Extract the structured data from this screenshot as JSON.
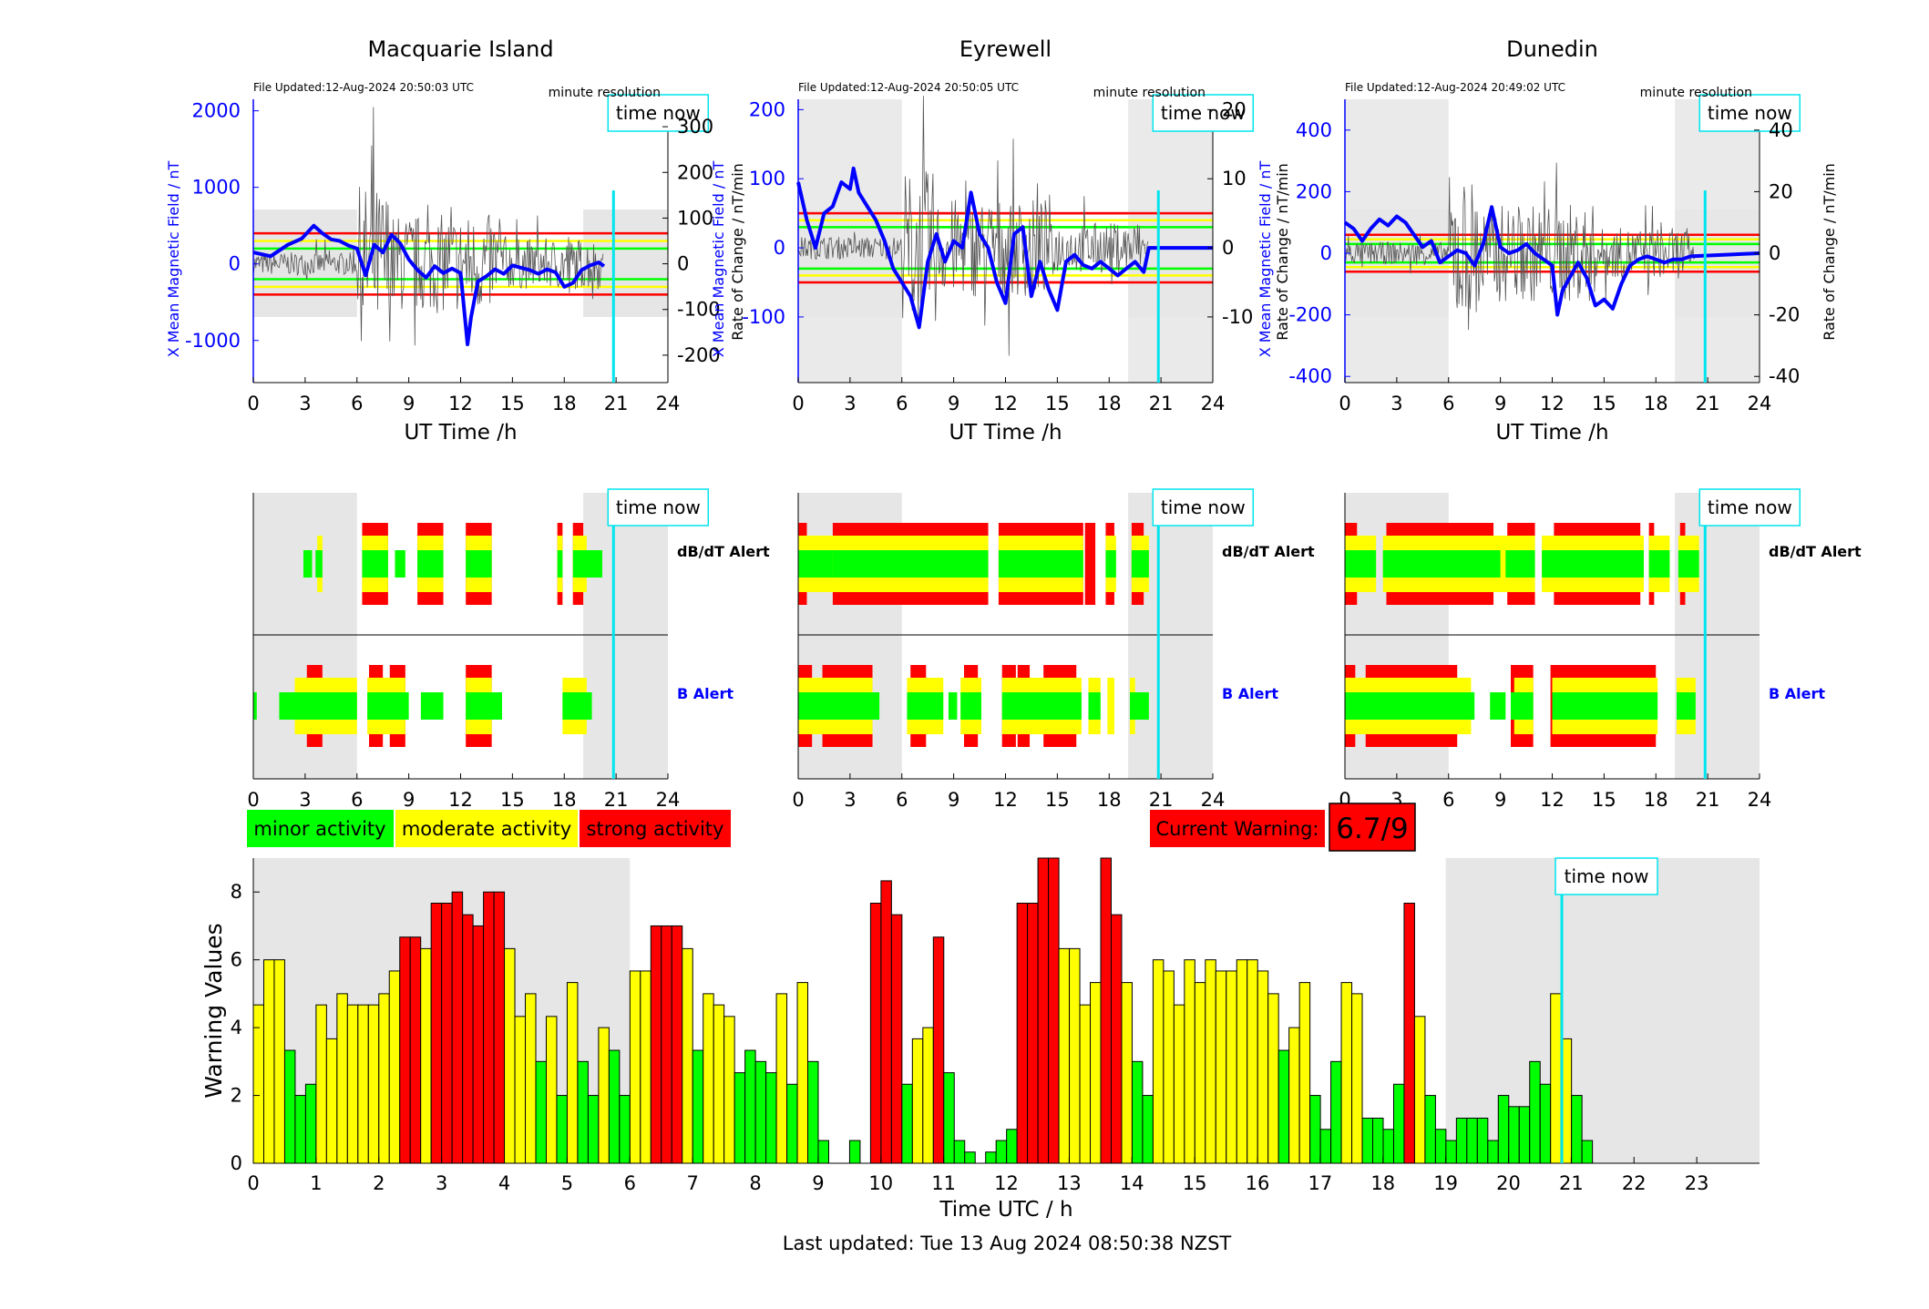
{
  "stations": [
    {
      "title": "Macquarie Island",
      "file_updated": "File Updated:12-Aug-2024 20:50:03 UTC",
      "resolution": "minute resolution",
      "time_now_label": "time now",
      "left_ylabel": "X Mean Magnetic Field / nT",
      "right_ylabel": "Rate of Change / nT/min",
      "xlabel": "UT Time /h",
      "xticks": [
        "0",
        "3",
        "6",
        "9",
        "12",
        "15",
        "18",
        "21",
        "24"
      ],
      "left_ticks": [
        "2000",
        "1000",
        "0",
        "-1000"
      ],
      "left_tick_values": [
        2000,
        1000,
        0,
        -1000
      ],
      "left_range": [
        -1550,
        2150
      ],
      "right_ticks": [
        "300",
        "200",
        "100",
        "0",
        "-100",
        "-200"
      ],
      "right_tick_values": [
        300,
        200,
        100,
        0,
        -100,
        -200
      ],
      "right_range": [
        -260,
        360
      ],
      "thresholds_left": {
        "red": 400,
        "yellow": 300,
        "green": 200
      },
      "night_shading_h": [
        [
          0,
          6
        ],
        [
          19.1,
          24
        ]
      ],
      "time_now_h": 20.85,
      "field_trace": [
        [
          0,
          150
        ],
        [
          1,
          100
        ],
        [
          2,
          250
        ],
        [
          2.8,
          330
        ],
        [
          3.5,
          500
        ],
        [
          4,
          400
        ],
        [
          4.5,
          320
        ],
        [
          5,
          300
        ],
        [
          5.5,
          240
        ],
        [
          6,
          200
        ],
        [
          6.5,
          -150
        ],
        [
          7,
          250
        ],
        [
          7.5,
          150
        ],
        [
          8,
          380
        ],
        [
          8.5,
          270
        ],
        [
          9,
          60
        ],
        [
          9.5,
          -80
        ],
        [
          10,
          -180
        ],
        [
          10.5,
          -30
        ],
        [
          11,
          -120
        ],
        [
          11.5,
          -60
        ],
        [
          12,
          -120
        ],
        [
          12.4,
          -1050
        ],
        [
          12.6,
          -700
        ],
        [
          13,
          -230
        ],
        [
          13.5,
          -160
        ],
        [
          14,
          -70
        ],
        [
          14.5,
          -130
        ],
        [
          15,
          -20
        ],
        [
          16,
          -80
        ],
        [
          16.5,
          -130
        ],
        [
          17,
          -70
        ],
        [
          17.5,
          -110
        ],
        [
          18,
          -300
        ],
        [
          18.5,
          -250
        ],
        [
          19,
          -80
        ],
        [
          19.5,
          -20
        ],
        [
          20,
          20
        ],
        [
          20.3,
          -30
        ]
      ],
      "dbdt_alert": {
        "green": [
          [
            2.9,
            3.4
          ],
          [
            3.6,
            4
          ],
          [
            6.3,
            7.8
          ],
          [
            8.2,
            8.8
          ],
          [
            9.5,
            11
          ],
          [
            12.3,
            13.8
          ],
          [
            17.6,
            17.9
          ],
          [
            18.5,
            20.2
          ]
        ],
        "yellow": [
          [
            3.7,
            4
          ],
          [
            6.3,
            7.8
          ],
          [
            9.5,
            11
          ],
          [
            12.3,
            13.8
          ],
          [
            17.6,
            17.9
          ],
          [
            18.5,
            19.3
          ]
        ],
        "red": [
          [
            6.3,
            7.8
          ],
          [
            9.5,
            11
          ],
          [
            12.3,
            13.8
          ],
          [
            17.6,
            17.9
          ],
          [
            18.5,
            19.1
          ]
        ]
      },
      "b_alert": {
        "green": [
          [
            0,
            0.2
          ],
          [
            1.5,
            6
          ],
          [
            6.6,
            9
          ],
          [
            9.7,
            11
          ],
          [
            12.3,
            14.4
          ],
          [
            17.9,
            19.6
          ]
        ],
        "yellow": [
          [
            2.4,
            6
          ],
          [
            6.6,
            8.8
          ],
          [
            12.3,
            13.8
          ],
          [
            17.9,
            19.3
          ]
        ],
        "red": [
          [
            3.1,
            4
          ],
          [
            6.7,
            7.5
          ],
          [
            7.9,
            8.8
          ],
          [
            12.3,
            13.8
          ]
        ]
      },
      "dbdt_label": "dB/dT Alert",
      "b_label": "B Alert"
    },
    {
      "title": "Eyrewell",
      "file_updated": "File Updated:12-Aug-2024 20:50:05 UTC",
      "resolution": "minute resolution",
      "time_now_label": "time now",
      "left_ylabel": "X Mean Magnetic Field / nT",
      "right_ylabel": "Rate of Change / nT/min",
      "xlabel": "UT Time /h",
      "xticks": [
        "0",
        "3",
        "6",
        "9",
        "12",
        "15",
        "18",
        "21",
        "24"
      ],
      "left_ticks": [
        "200",
        "100",
        "0",
        "-100"
      ],
      "left_tick_values": [
        200,
        100,
        0,
        -100
      ],
      "left_range": [
        -195,
        215
      ],
      "right_ticks": [
        "20",
        "10",
        "0",
        "-10"
      ],
      "right_tick_values": [
        20,
        10,
        0,
        -10
      ],
      "right_range": [
        -19.5,
        21.5
      ],
      "thresholds_left": {
        "red": 50,
        "yellow": 40,
        "green": 30
      },
      "night_shading_h": [
        [
          0,
          6
        ],
        [
          19.1,
          24
        ]
      ],
      "time_now_h": 20.85,
      "field_trace": [
        [
          0,
          95
        ],
        [
          0.5,
          40
        ],
        [
          1,
          0
        ],
        [
          1.5,
          50
        ],
        [
          2,
          60
        ],
        [
          2.5,
          95
        ],
        [
          3,
          85
        ],
        [
          3.2,
          115
        ],
        [
          3.5,
          80
        ],
        [
          4,
          60
        ],
        [
          4.5,
          40
        ],
        [
          5,
          10
        ],
        [
          5.5,
          -30
        ],
        [
          6,
          -50
        ],
        [
          6.5,
          -70
        ],
        [
          7,
          -115
        ],
        [
          7.5,
          -20
        ],
        [
          8,
          20
        ],
        [
          8.5,
          -20
        ],
        [
          9,
          10
        ],
        [
          9.5,
          0
        ],
        [
          10,
          80
        ],
        [
          10.5,
          20
        ],
        [
          11,
          0
        ],
        [
          11.5,
          -50
        ],
        [
          12,
          -80
        ],
        [
          12.5,
          20
        ],
        [
          13,
          30
        ],
        [
          13.5,
          -70
        ],
        [
          14,
          -20
        ],
        [
          14.5,
          -60
        ],
        [
          15,
          -90
        ],
        [
          15.5,
          -20
        ],
        [
          16,
          -10
        ],
        [
          16.5,
          -25
        ],
        [
          17,
          -30
        ],
        [
          17.5,
          -20
        ],
        [
          18,
          -30
        ],
        [
          18.5,
          -40
        ],
        [
          19,
          -30
        ],
        [
          19.5,
          -20
        ],
        [
          20,
          -35
        ],
        [
          20.3,
          0
        ],
        [
          24,
          0
        ]
      ],
      "dbdt_alert": {
        "green": [
          [
            0,
            2
          ],
          [
            2,
            11
          ],
          [
            11.6,
            16.5
          ],
          [
            17.8,
            18.4
          ],
          [
            19.3,
            20.3
          ]
        ],
        "yellow": [
          [
            0,
            11
          ],
          [
            11.6,
            16.5
          ],
          [
            17.8,
            18.4
          ],
          [
            19.3,
            20.3
          ]
        ],
        "red": [
          [
            0,
            0.5
          ],
          [
            2,
            11
          ],
          [
            11.6,
            16.5
          ],
          [
            16.6,
            17.2
          ],
          [
            17.8,
            18.3
          ],
          [
            19.3,
            20
          ]
        ]
      },
      "b_alert": {
        "green": [
          [
            0,
            4.7
          ],
          [
            6.3,
            8.4
          ],
          [
            8.7,
            9.2
          ],
          [
            9.4,
            10.6
          ],
          [
            11.8,
            16.4
          ],
          [
            16.8,
            17.5
          ],
          [
            19.2,
            20.3
          ]
        ],
        "yellow": [
          [
            0,
            4.3
          ],
          [
            6.3,
            8.4
          ],
          [
            9.4,
            10.6
          ],
          [
            11.8,
            16.4
          ],
          [
            16.8,
            17.5
          ],
          [
            17.9,
            18.3
          ],
          [
            19.2,
            19.5
          ]
        ],
        "red": [
          [
            0,
            0.8
          ],
          [
            1.4,
            4.3
          ],
          [
            6.5,
            7.4
          ],
          [
            9.6,
            10.4
          ],
          [
            11.8,
            12.6
          ],
          [
            12.7,
            13.4
          ],
          [
            14.2,
            16.1
          ]
        ]
      },
      "dbdt_label": "dB/dT Alert",
      "b_label": "B Alert"
    },
    {
      "title": "Dunedin",
      "file_updated": "File Updated:12-Aug-2024 20:49:02 UTC",
      "resolution": "minute resolution",
      "time_now_label": "time now",
      "left_ylabel": "X Mean Magnetic Field / nT",
      "right_ylabel": "Rate of Change / nT/min",
      "xlabel": "UT Time /h",
      "xticks": [
        "0",
        "3",
        "6",
        "9",
        "12",
        "15",
        "18",
        "21",
        "24"
      ],
      "left_ticks": [
        "400",
        "200",
        "0",
        "-200",
        "-400"
      ],
      "left_tick_values": [
        400,
        200,
        0,
        -200,
        -400
      ],
      "left_range": [
        -420,
        500
      ],
      "right_ticks": [
        "40",
        "20",
        "0",
        "-20",
        "-40"
      ],
      "right_tick_values": [
        40,
        20,
        0,
        -20,
        -40
      ],
      "right_range": [
        -42,
        50
      ],
      "thresholds_left": {
        "red": 60,
        "yellow": 45,
        "green": 30
      },
      "night_shading_h": [
        [
          0,
          6
        ],
        [
          19.1,
          24
        ]
      ],
      "time_now_h": 20.85,
      "field_trace": [
        [
          0,
          100
        ],
        [
          0.5,
          80
        ],
        [
          1,
          40
        ],
        [
          1.5,
          80
        ],
        [
          2,
          110
        ],
        [
          2.5,
          90
        ],
        [
          3,
          120
        ],
        [
          3.5,
          100
        ],
        [
          4,
          60
        ],
        [
          4.5,
          20
        ],
        [
          5,
          40
        ],
        [
          5.5,
          -30
        ],
        [
          6,
          -10
        ],
        [
          6.5,
          10
        ],
        [
          7,
          0
        ],
        [
          7.5,
          -40
        ],
        [
          8,
          30
        ],
        [
          8.5,
          150
        ],
        [
          9,
          20
        ],
        [
          9.5,
          0
        ],
        [
          10,
          10
        ],
        [
          10.5,
          30
        ],
        [
          11,
          0
        ],
        [
          11.5,
          -20
        ],
        [
          12,
          -40
        ],
        [
          12.3,
          -200
        ],
        [
          12.6,
          -120
        ],
        [
          13,
          -80
        ],
        [
          13.5,
          -30
        ],
        [
          14,
          -80
        ],
        [
          14.5,
          -170
        ],
        [
          15,
          -150
        ],
        [
          15.5,
          -180
        ],
        [
          16,
          -100
        ],
        [
          16.5,
          -40
        ],
        [
          17,
          -20
        ],
        [
          17.5,
          -10
        ],
        [
          18,
          -20
        ],
        [
          18.5,
          -30
        ],
        [
          19,
          -20
        ],
        [
          19.5,
          -20
        ],
        [
          20,
          -10
        ],
        [
          24,
          0
        ]
      ],
      "dbdt_alert": {
        "green": [
          [
            0,
            1.8
          ],
          [
            2.2,
            9
          ],
          [
            9.3,
            11
          ],
          [
            11.4,
            17.3
          ],
          [
            17.6,
            18.8
          ],
          [
            19.3,
            20.5
          ]
        ],
        "yellow": [
          [
            0,
            1.8
          ],
          [
            2.2,
            11
          ],
          [
            11.4,
            17.3
          ],
          [
            17.6,
            18.8
          ],
          [
            19.3,
            20.5
          ]
        ],
        "red": [
          [
            0,
            0.7
          ],
          [
            2.4,
            8.6
          ],
          [
            9.4,
            11
          ],
          [
            12.1,
            17.1
          ],
          [
            17.6,
            17.9
          ],
          [
            19.4,
            19.7
          ]
        ]
      },
      "b_alert": {
        "green": [
          [
            0,
            7.5
          ],
          [
            8.4,
            9.3
          ],
          [
            9.6,
            10.9
          ],
          [
            12,
            18.1
          ],
          [
            19.2,
            20.3
          ]
        ],
        "yellow": [
          [
            0,
            7.3
          ],
          [
            9.8,
            10.9
          ],
          [
            12,
            18.1
          ],
          [
            19.2,
            20.3
          ]
        ],
        "red": [
          [
            0,
            0.6
          ],
          [
            1.2,
            6.5
          ],
          [
            9.6,
            10.9
          ],
          [
            11.9,
            18
          ]
        ]
      },
      "dbdt_label": "dB/dT Alert",
      "b_label": "B Alert"
    }
  ],
  "legend": {
    "minor": "minor activity",
    "moderate": "moderate activity",
    "strong": "strong activity"
  },
  "current_warning": {
    "label": "Current Warning:",
    "value": "6.7/9"
  },
  "colors": {
    "minor": "#00ff00",
    "moderate": "#ffff00",
    "strong": "#ff0000",
    "time_now": "#00e5ee",
    "trace": "#0000ff",
    "night": "#e6e6e6"
  },
  "chart_data": {
    "type": "bar",
    "ylabel": "Warning Values",
    "xlabel": "Time UTC / h",
    "time_now_label": "time now",
    "time_now_h": 20.85,
    "xticks": [
      "0",
      "1",
      "2",
      "3",
      "4",
      "5",
      "6",
      "7",
      "8",
      "9",
      "10",
      "11",
      "12",
      "13",
      "14",
      "15",
      "16",
      "17",
      "18",
      "19",
      "20",
      "21",
      "22",
      "23"
    ],
    "yticks": [
      "0",
      "2",
      "4",
      "6",
      "8"
    ],
    "ylim": [
      0,
      9
    ],
    "xlim": [
      0,
      24
    ],
    "night_shading_h": [
      [
        0,
        6
      ],
      [
        19,
        24
      ]
    ],
    "bar_width_h": 0.1667,
    "values": [
      4.67,
      6,
      6,
      3.33,
      2,
      2.33,
      4.67,
      3.67,
      5,
      4.67,
      4.67,
      4.67,
      5,
      5.67,
      6.67,
      6.67,
      6.33,
      7.67,
      7.67,
      8,
      7.33,
      7,
      8,
      8,
      6.33,
      4.33,
      5,
      3,
      4.33,
      2,
      5.33,
      3,
      2,
      4,
      3.33,
      2,
      5.67,
      5.67,
      7,
      7,
      7,
      6.33,
      3.33,
      5,
      4.67,
      4.33,
      2.67,
      3.33,
      3,
      2.67,
      5,
      2.33,
      5.33,
      3,
      0.67,
      null,
      null,
      0.67,
      null,
      7.67,
      8.33,
      7.33,
      2.33,
      3.67,
      4,
      6.67,
      2.67,
      0.67,
      0.33,
      null,
      0.33,
      0.67,
      1,
      7.67,
      7.67,
      9,
      9,
      6.33,
      6.33,
      4.67,
      5.33,
      9,
      7.33,
      5.33,
      3,
      2,
      6,
      5.67,
      4.67,
      6,
      5.33,
      6,
      5.67,
      5.67,
      6,
      6,
      5.67,
      5,
      3.33,
      4,
      5.33,
      2,
      1,
      3,
      5.33,
      5,
      1.33,
      1.33,
      1,
      2.33,
      7.67,
      4.33,
      2,
      1,
      0.67,
      1.33,
      1.33,
      1.33,
      0.67,
      2,
      1.67,
      1.67,
      3,
      2.33,
      5,
      3.67,
      2,
      0.67
    ],
    "category_for_color": "value >= 6.34 strong; value >= 3.34 moderate; else minor"
  },
  "footer": {
    "last_updated": "Last updated: Tue 13 Aug 2024 08:50:38 NZST"
  }
}
